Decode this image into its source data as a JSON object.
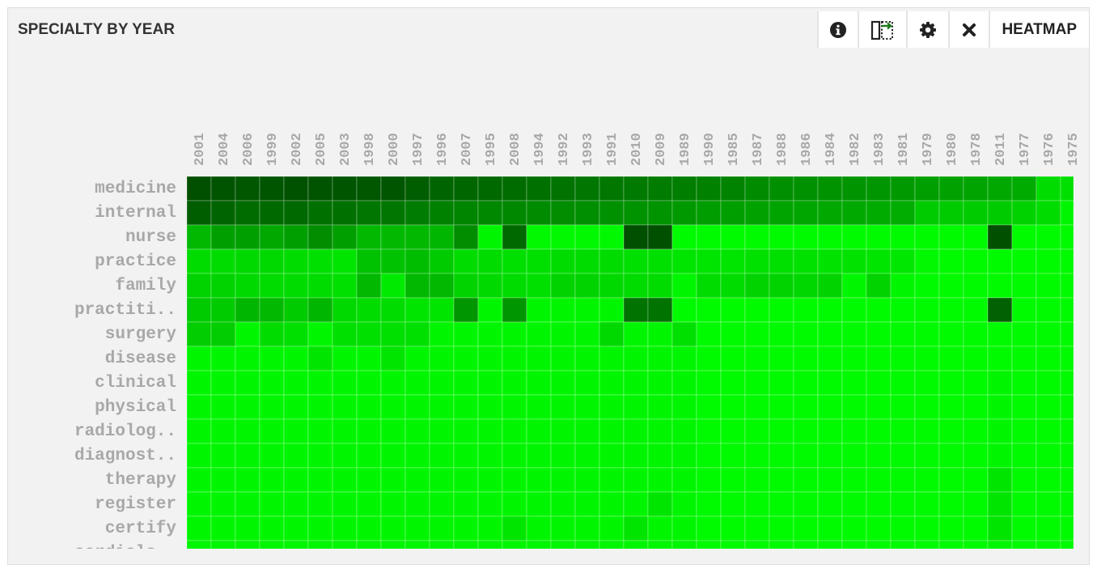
{
  "panel": {
    "title": "SPECIALTY BY YEAR",
    "toolbar": {
      "info_icon": "info-circle-icon",
      "export_icon": "export-columns-icon",
      "settings_icon": "gear-icon",
      "close_icon": "close-icon",
      "view_label": "HEATMAP"
    }
  },
  "chart_data": {
    "type": "heatmap",
    "title": "SPECIALTY BY YEAR",
    "x_categories": [
      "2001",
      "2004",
      "2006",
      "1999",
      "2002",
      "2005",
      "2003",
      "1998",
      "2000",
      "1997",
      "1996",
      "2007",
      "1995",
      "2008",
      "1994",
      "1992",
      "1993",
      "1991",
      "2010",
      "2009",
      "1989",
      "1990",
      "1985",
      "1987",
      "1988",
      "1986",
      "1984",
      "1982",
      "1983",
      "1981",
      "1979",
      "1980",
      "1978",
      "2011",
      "1977",
      "1976",
      "1975"
    ],
    "y_categories": [
      "medicine",
      "internal",
      "nurse",
      "practice",
      "family",
      "practiti..",
      "surgery",
      "disease",
      "clinical",
      "physical",
      "radiolog..",
      "diagnost..",
      "therapy",
      "register",
      "certify",
      "cardiolo.."
    ],
    "color_scale": {
      "low": "#00ff00",
      "high": "#005000"
    },
    "value_range": [
      0,
      1
    ],
    "values": [
      [
        1.0,
        0.98,
        0.96,
        0.97,
        0.99,
        0.98,
        0.97,
        0.96,
        0.97,
        0.92,
        0.88,
        0.87,
        0.86,
        0.84,
        0.81,
        0.8,
        0.78,
        0.77,
        0.76,
        0.75,
        0.74,
        0.72,
        0.71,
        0.66,
        0.64,
        0.63,
        0.62,
        0.61,
        0.6,
        0.58,
        0.55,
        0.53,
        0.52,
        0.5,
        0.48,
        0.2,
        0.18
      ],
      [
        0.92,
        0.88,
        0.84,
        0.85,
        0.86,
        0.82,
        0.81,
        0.78,
        0.78,
        0.75,
        0.72,
        0.7,
        0.68,
        0.68,
        0.66,
        0.65,
        0.64,
        0.63,
        0.62,
        0.61,
        0.58,
        0.56,
        0.55,
        0.53,
        0.52,
        0.51,
        0.5,
        0.49,
        0.48,
        0.47,
        0.3,
        0.3,
        0.3,
        0.3,
        0.26,
        0.2,
        0.05
      ],
      [
        0.4,
        0.55,
        0.55,
        0.5,
        0.55,
        0.65,
        0.55,
        0.4,
        0.4,
        0.4,
        0.42,
        0.65,
        0.05,
        0.85,
        0.04,
        0.04,
        0.04,
        0.04,
        1.0,
        1.0,
        0.03,
        0.03,
        0.03,
        0.03,
        0.03,
        0.03,
        0.03,
        0.03,
        0.03,
        0.03,
        0.03,
        0.03,
        0.03,
        1.0,
        0.03,
        0.03,
        0.03
      ],
      [
        0.2,
        0.2,
        0.22,
        0.22,
        0.2,
        0.18,
        0.15,
        0.35,
        0.35,
        0.38,
        0.3,
        0.2,
        0.2,
        0.18,
        0.18,
        0.2,
        0.2,
        0.2,
        0.18,
        0.18,
        0.15,
        0.15,
        0.15,
        0.17,
        0.18,
        0.17,
        0.16,
        0.16,
        0.15,
        0.14,
        0.04,
        0.03,
        0.03,
        0.03,
        0.03,
        0.03,
        0.03
      ],
      [
        0.25,
        0.25,
        0.22,
        0.2,
        0.2,
        0.2,
        0.18,
        0.4,
        0.12,
        0.4,
        0.4,
        0.25,
        0.22,
        0.2,
        0.18,
        0.25,
        0.25,
        0.22,
        0.2,
        0.2,
        0.05,
        0.2,
        0.2,
        0.25,
        0.25,
        0.23,
        0.25,
        0.05,
        0.25,
        0.05,
        0.03,
        0.03,
        0.03,
        0.03,
        0.03,
        0.03,
        0.03
      ],
      [
        0.3,
        0.3,
        0.42,
        0.4,
        0.3,
        0.42,
        0.22,
        0.2,
        0.2,
        0.15,
        0.15,
        0.6,
        0.05,
        0.6,
        0.05,
        0.05,
        0.05,
        0.05,
        0.8,
        0.8,
        0.03,
        0.03,
        0.03,
        0.03,
        0.03,
        0.03,
        0.03,
        0.03,
        0.03,
        0.03,
        0.03,
        0.03,
        0.03,
        0.9,
        0.03,
        0.03,
        0.03
      ],
      [
        0.28,
        0.28,
        0.05,
        0.2,
        0.18,
        0.05,
        0.18,
        0.18,
        0.18,
        0.18,
        0.05,
        0.05,
        0.05,
        0.05,
        0.05,
        0.05,
        0.05,
        0.22,
        0.05,
        0.05,
        0.18,
        0.03,
        0.03,
        0.03,
        0.03,
        0.03,
        0.03,
        0.03,
        0.03,
        0.03,
        0.03,
        0.03,
        0.03,
        0.03,
        0.03,
        0.03,
        0.03
      ],
      [
        0.05,
        0.05,
        0.05,
        0.05,
        0.05,
        0.15,
        0.05,
        0.05,
        0.15,
        0.05,
        0.05,
        0.05,
        0.05,
        0.05,
        0.05,
        0.05,
        0.05,
        0.05,
        0.05,
        0.05,
        0.05,
        0.03,
        0.03,
        0.03,
        0.03,
        0.03,
        0.03,
        0.03,
        0.03,
        0.03,
        0.03,
        0.03,
        0.03,
        0.03,
        0.03,
        0.03,
        0.03
      ],
      [
        0.05,
        0.05,
        0.05,
        0.05,
        0.05,
        0.05,
        0.05,
        0.05,
        0.05,
        0.05,
        0.05,
        0.05,
        0.05,
        0.05,
        0.05,
        0.05,
        0.05,
        0.05,
        0.05,
        0.05,
        0.05,
        0.03,
        0.03,
        0.03,
        0.03,
        0.03,
        0.03,
        0.03,
        0.03,
        0.03,
        0.03,
        0.03,
        0.03,
        0.05,
        0.03,
        0.03,
        0.03
      ],
      [
        0.05,
        0.05,
        0.05,
        0.05,
        0.05,
        0.05,
        0.05,
        0.05,
        0.05,
        0.05,
        0.05,
        0.05,
        0.05,
        0.05,
        0.05,
        0.05,
        0.05,
        0.05,
        0.05,
        0.05,
        0.05,
        0.03,
        0.03,
        0.03,
        0.03,
        0.03,
        0.03,
        0.03,
        0.03,
        0.03,
        0.03,
        0.03,
        0.03,
        0.05,
        0.03,
        0.03,
        0.03
      ],
      [
        0.05,
        0.05,
        0.05,
        0.05,
        0.05,
        0.05,
        0.05,
        0.05,
        0.05,
        0.05,
        0.05,
        0.05,
        0.05,
        0.05,
        0.05,
        0.05,
        0.05,
        0.05,
        0.05,
        0.05,
        0.05,
        0.03,
        0.03,
        0.03,
        0.03,
        0.03,
        0.03,
        0.03,
        0.03,
        0.03,
        0.03,
        0.03,
        0.03,
        0.05,
        0.03,
        0.03,
        0.03
      ],
      [
        0.05,
        0.05,
        0.05,
        0.05,
        0.05,
        0.05,
        0.05,
        0.05,
        0.05,
        0.05,
        0.05,
        0.05,
        0.05,
        0.05,
        0.05,
        0.05,
        0.05,
        0.05,
        0.05,
        0.05,
        0.05,
        0.03,
        0.03,
        0.03,
        0.03,
        0.03,
        0.03,
        0.03,
        0.03,
        0.03,
        0.03,
        0.03,
        0.03,
        0.05,
        0.03,
        0.03,
        0.03
      ],
      [
        0.05,
        0.05,
        0.05,
        0.05,
        0.05,
        0.05,
        0.05,
        0.05,
        0.05,
        0.05,
        0.05,
        0.05,
        0.05,
        0.05,
        0.05,
        0.05,
        0.05,
        0.05,
        0.05,
        0.05,
        0.05,
        0.03,
        0.03,
        0.03,
        0.03,
        0.03,
        0.03,
        0.03,
        0.03,
        0.03,
        0.03,
        0.03,
        0.03,
        0.15,
        0.03,
        0.03,
        0.03
      ],
      [
        0.05,
        0.05,
        0.05,
        0.05,
        0.05,
        0.05,
        0.05,
        0.05,
        0.05,
        0.05,
        0.05,
        0.05,
        0.05,
        0.05,
        0.05,
        0.05,
        0.05,
        0.05,
        0.05,
        0.15,
        0.05,
        0.03,
        0.03,
        0.03,
        0.03,
        0.03,
        0.03,
        0.03,
        0.03,
        0.03,
        0.03,
        0.03,
        0.03,
        0.15,
        0.03,
        0.03,
        0.03
      ],
      [
        0.05,
        0.05,
        0.05,
        0.05,
        0.05,
        0.05,
        0.05,
        0.05,
        0.05,
        0.05,
        0.05,
        0.05,
        0.05,
        0.15,
        0.05,
        0.05,
        0.05,
        0.05,
        0.15,
        0.05,
        0.05,
        0.03,
        0.03,
        0.03,
        0.03,
        0.03,
        0.03,
        0.03,
        0.03,
        0.03,
        0.03,
        0.03,
        0.03,
        0.15,
        0.03,
        0.03,
        0.03
      ],
      [
        0.05,
        0.05,
        0.05,
        0.05,
        0.05,
        0.05,
        0.05,
        0.05,
        0.05,
        0.05,
        0.05,
        0.05,
        0.05,
        0.05,
        0.05,
        0.05,
        0.05,
        0.05,
        0.05,
        0.05,
        0.05,
        0.03,
        0.03,
        0.03,
        0.03,
        0.03,
        0.03,
        0.03,
        0.03,
        0.03,
        0.03,
        0.03,
        0.03,
        0.05,
        0.03,
        0.03,
        0.03
      ]
    ]
  }
}
